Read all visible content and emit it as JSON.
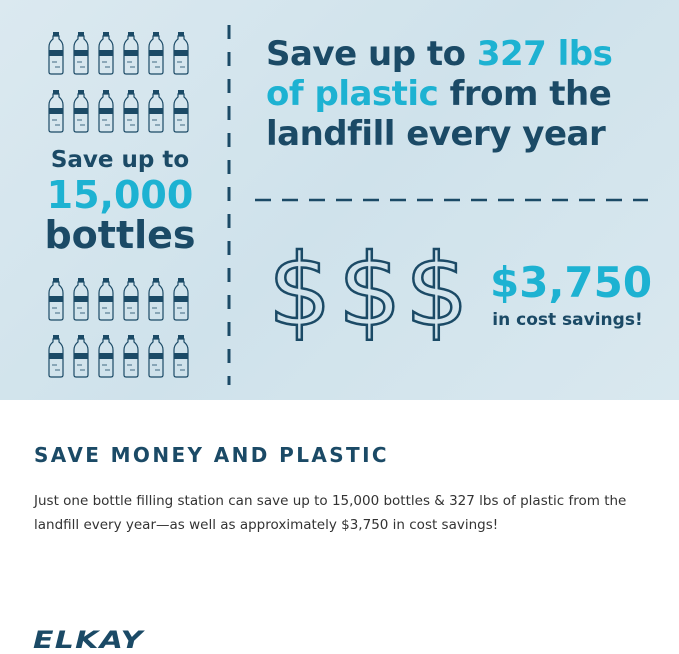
{
  "infographic": {
    "headline": {
      "part1": "Save up to ",
      "highlight1": "327 lbs",
      "highlight2": "of plastic",
      "part2": " from the",
      "part3": "landfill every year"
    },
    "bottles": {
      "line1": "Save up to",
      "count": "15,000",
      "line3": "bottles",
      "icon": "water-bottle-icon",
      "rows": 4,
      "cols": 6
    },
    "savings": {
      "icon": "dollar-sign-icon",
      "dollar_glyph": "$",
      "amount": "$3,750",
      "caption": "in cost savings!"
    },
    "colors": {
      "navy": "#1b4a66",
      "cyan": "#1db2d2",
      "background": "#d6e6ee"
    }
  },
  "section": {
    "heading": "SAVE MONEY AND PLASTIC",
    "body": "Just one bottle filling station can save up to 15,000 bottles & 327 lbs of plastic from the landfill every year—as well as approximately $3,750 in cost savings!"
  },
  "brand": {
    "logo": "ELKAY"
  }
}
